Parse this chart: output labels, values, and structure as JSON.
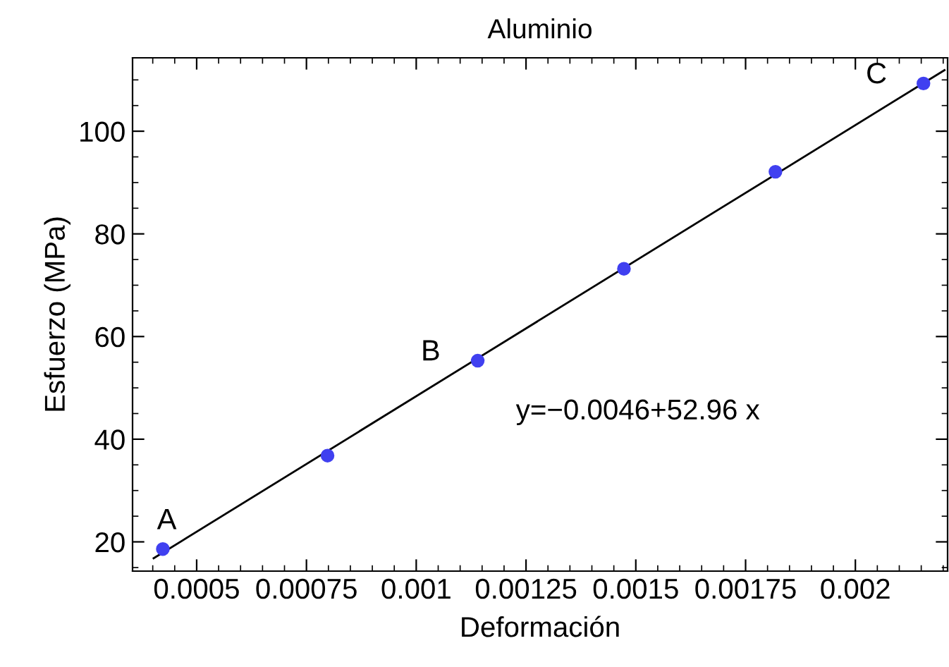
{
  "chart_data": {
    "type": "scatter",
    "title": "Aluminio",
    "xlabel": "Deformación",
    "ylabel": "Esfuerzo (MPa)",
    "x": [
      0.000423,
      0.000798,
      0.00114,
      0.001473,
      0.001818,
      0.002155
    ],
    "series": [
      {
        "color": "#4040f0",
        "values": [
          18.6,
          36.8,
          55.3,
          73.2,
          92.1,
          109.3
        ],
        "marker": "circle"
      },
      {
        "type": "line",
        "color": "#000000",
        "x": [
          0.000402,
          0.002203
        ],
        "values": [
          16.8,
          111.9
        ],
        "marker": "none",
        "line_style": "solid"
      }
    ],
    "annotations": [
      {
        "text": "A",
        "x": 0.000423,
        "y": 18.6
      },
      {
        "text": "B",
        "x": 0.00114,
        "y": 55.3
      },
      {
        "text": "C",
        "x": 0.002155,
        "y": 109.3
      },
      "y=−0.0046+52.96 x"
    ],
    "xlim": [
      0.000354,
      0.00221
    ],
    "ylim": [
      14.3,
      114.3
    ],
    "xticks": [
      0.0005,
      0.00075,
      0.001,
      0.00125,
      0.0015,
      0.00175,
      0.002
    ],
    "yticks": [
      20,
      40,
      60,
      80,
      100
    ],
    "grid": false,
    "legend": false
  }
}
